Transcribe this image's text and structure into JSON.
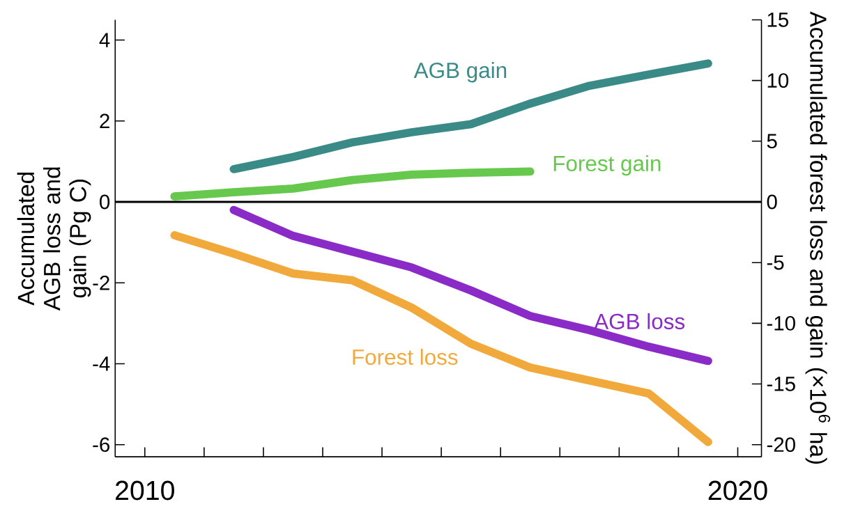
{
  "chart_data": {
    "type": "line",
    "ylabel": "Accumulated AGB loss and gain (Pg C)",
    "y2label": "Accumulated forest loss and gain (×10$^{6}$ ha)",
    "xlim": [
      2009.5,
      2020.4
    ],
    "xticks": [
      2010,
      {
        "value": 2011,
        "label": null
      },
      {
        "value": 2012,
        "label": null
      },
      {
        "value": 2013,
        "label": null
      },
      {
        "value": 2014,
        "label": null
      },
      {
        "value": 2015,
        "label": null
      },
      {
        "value": 2016,
        "label": null
      },
      {
        "value": 2017,
        "label": null
      },
      {
        "value": 2018,
        "label": null
      },
      {
        "value": 2019,
        "label": null
      },
      2020
    ],
    "ylim": [
      -6.3,
      4.5
    ],
    "yticks": [
      -6,
      -4,
      -2,
      0,
      2,
      4
    ],
    "y2lim": [
      -21,
      15
    ],
    "y2ticks": [
      -20,
      -15,
      -10,
      -5,
      0,
      5,
      10,
      15
    ],
    "ref_lines": [
      {
        "axis": "y",
        "value": 0,
        "color": "#000000"
      }
    ],
    "marker": "none",
    "line_style": "solid",
    "legend": false,
    "grid": false,
    "series": [
      {
        "name": "AGB gain",
        "color": "#3a8a87",
        "x": [
          2011.5,
          2012.5,
          2013.5,
          2014.5,
          2015.5,
          2016.5,
          2017.5,
          2018.5,
          2019.5
        ],
        "values": [
          0.81,
          1.11,
          1.47,
          1.72,
          1.92,
          2.43,
          2.87,
          3.15,
          3.42
        ]
      },
      {
        "name": "Forest gain",
        "color": "#66c84c",
        "axis": "y2",
        "x": [
          2010.5,
          2011.5,
          2012.5,
          2013.5,
          2014.5,
          2015.5,
          2016.5
        ],
        "values": [
          0.45,
          0.8,
          1.1,
          1.8,
          2.25,
          2.4,
          2.5
        ]
      },
      {
        "name": "AGB loss",
        "color": "#8a2bc8",
        "x": [
          2011.5,
          2012.5,
          2013.5,
          2014.5,
          2015.5,
          2016.5,
          2017.5,
          2018.5,
          2019.5
        ],
        "values": [
          -0.2,
          -0.84,
          -1.23,
          -1.62,
          -2.19,
          -2.82,
          -3.17,
          -3.58,
          -3.93
        ]
      },
      {
        "name": "Forest loss",
        "color": "#f2a93b",
        "axis": "y2",
        "x": [
          2010.5,
          2011.5,
          2012.5,
          2013.5,
          2014.5,
          2015.5,
          2016.5,
          2017.5,
          2018.5,
          2019.5
        ],
        "values": [
          -2.75,
          -4.27,
          -5.9,
          -6.46,
          -8.71,
          -11.69,
          -13.65,
          -14.72,
          -15.79,
          -19.78
        ]
      }
    ]
  }
}
